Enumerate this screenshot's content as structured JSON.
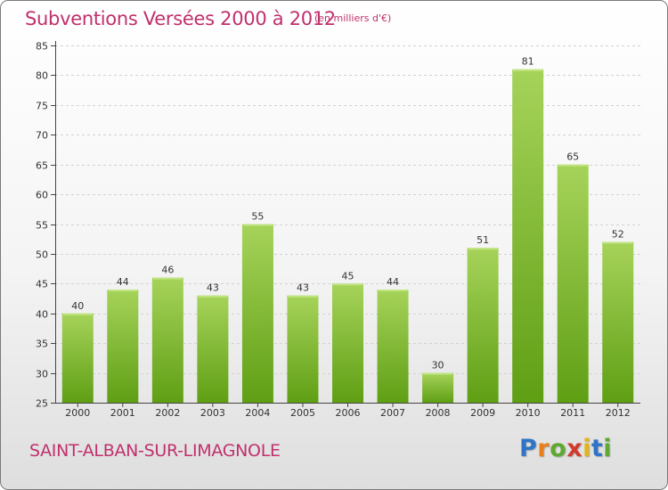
{
  "title": "Subventions Versées 2000 à 2012",
  "subtitle": "(en milliers d'€)",
  "commune": "SAINT-ALBAN-SUR-LIMAGNOLE",
  "logo": {
    "letters": [
      "P",
      "r",
      "o",
      "x",
      "i",
      "t",
      "i"
    ],
    "colors": [
      "#2f74c7",
      "#e87f1d",
      "#5fa832",
      "#d23a2b",
      "#e3b51a",
      "#2f74c7",
      "#5fa832"
    ]
  },
  "colors": {
    "bar_light": "#a6d35a",
    "bar_dark": "#5f9f14",
    "grid": "#d2d2d2",
    "axis": "#444444"
  },
  "chart_data": {
    "type": "bar",
    "categories": [
      "2000",
      "2001",
      "2002",
      "2003",
      "2004",
      "2005",
      "2006",
      "2007",
      "2008",
      "2009",
      "2010",
      "2011",
      "2012"
    ],
    "values": [
      40,
      44,
      46,
      43,
      55,
      43,
      45,
      44,
      30,
      51,
      81,
      65,
      52
    ],
    "data_labels": [
      "40",
      "44",
      "46",
      "43",
      "55",
      "43",
      "45",
      "44",
      "30",
      "51",
      "81",
      "65",
      "52"
    ],
    "ylim": [
      25,
      85
    ],
    "yticks": [
      25,
      30,
      35,
      40,
      45,
      50,
      55,
      60,
      65,
      70,
      75,
      80,
      85
    ],
    "ytick_labels": [
      "25",
      "30",
      "35",
      "40",
      "45",
      "50",
      "55",
      "60",
      "65",
      "70",
      "75",
      "80",
      "85"
    ],
    "grid": true,
    "xlabel": "",
    "ylabel": ""
  }
}
